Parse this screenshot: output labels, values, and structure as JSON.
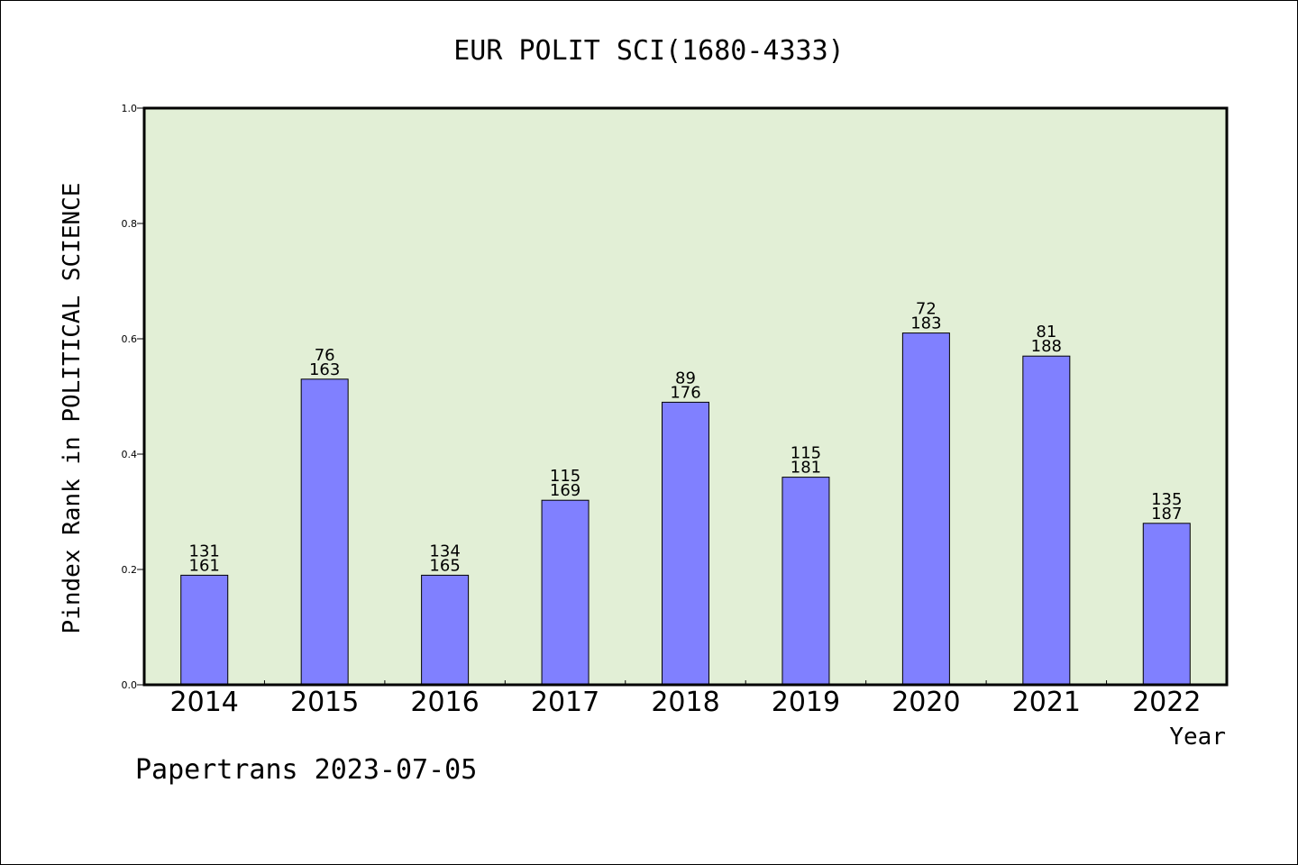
{
  "chart_data": {
    "type": "bar",
    "title": "EUR POLIT SCI(1680-4333)",
    "xlabel": "Year",
    "ylabel": "Pindex Rank in POLITICAL SCIENCE",
    "ylim": [
      0,
      1.0
    ],
    "yticks": [
      "0.0",
      "0.2",
      "0.4",
      "0.6",
      "0.8",
      "1.0"
    ],
    "categories": [
      "2014",
      "2015",
      "2016",
      "2017",
      "2018",
      "2019",
      "2020",
      "2021",
      "2022"
    ],
    "values": [
      0.19,
      0.53,
      0.19,
      0.32,
      0.49,
      0.36,
      0.61,
      0.57,
      0.28
    ],
    "label_top": [
      "131",
      "76",
      "134",
      "115",
      "89",
      "115",
      "72",
      "81",
      "135"
    ],
    "label_bottom": [
      "161",
      "163",
      "165",
      "169",
      "176",
      "181",
      "183",
      "188",
      "187"
    ],
    "grid": false,
    "colors": {
      "bar": "#8080ff",
      "plot_bg": "#e2efd6",
      "axis": "#000000"
    }
  },
  "footer": "Papertrans 2023-07-05"
}
